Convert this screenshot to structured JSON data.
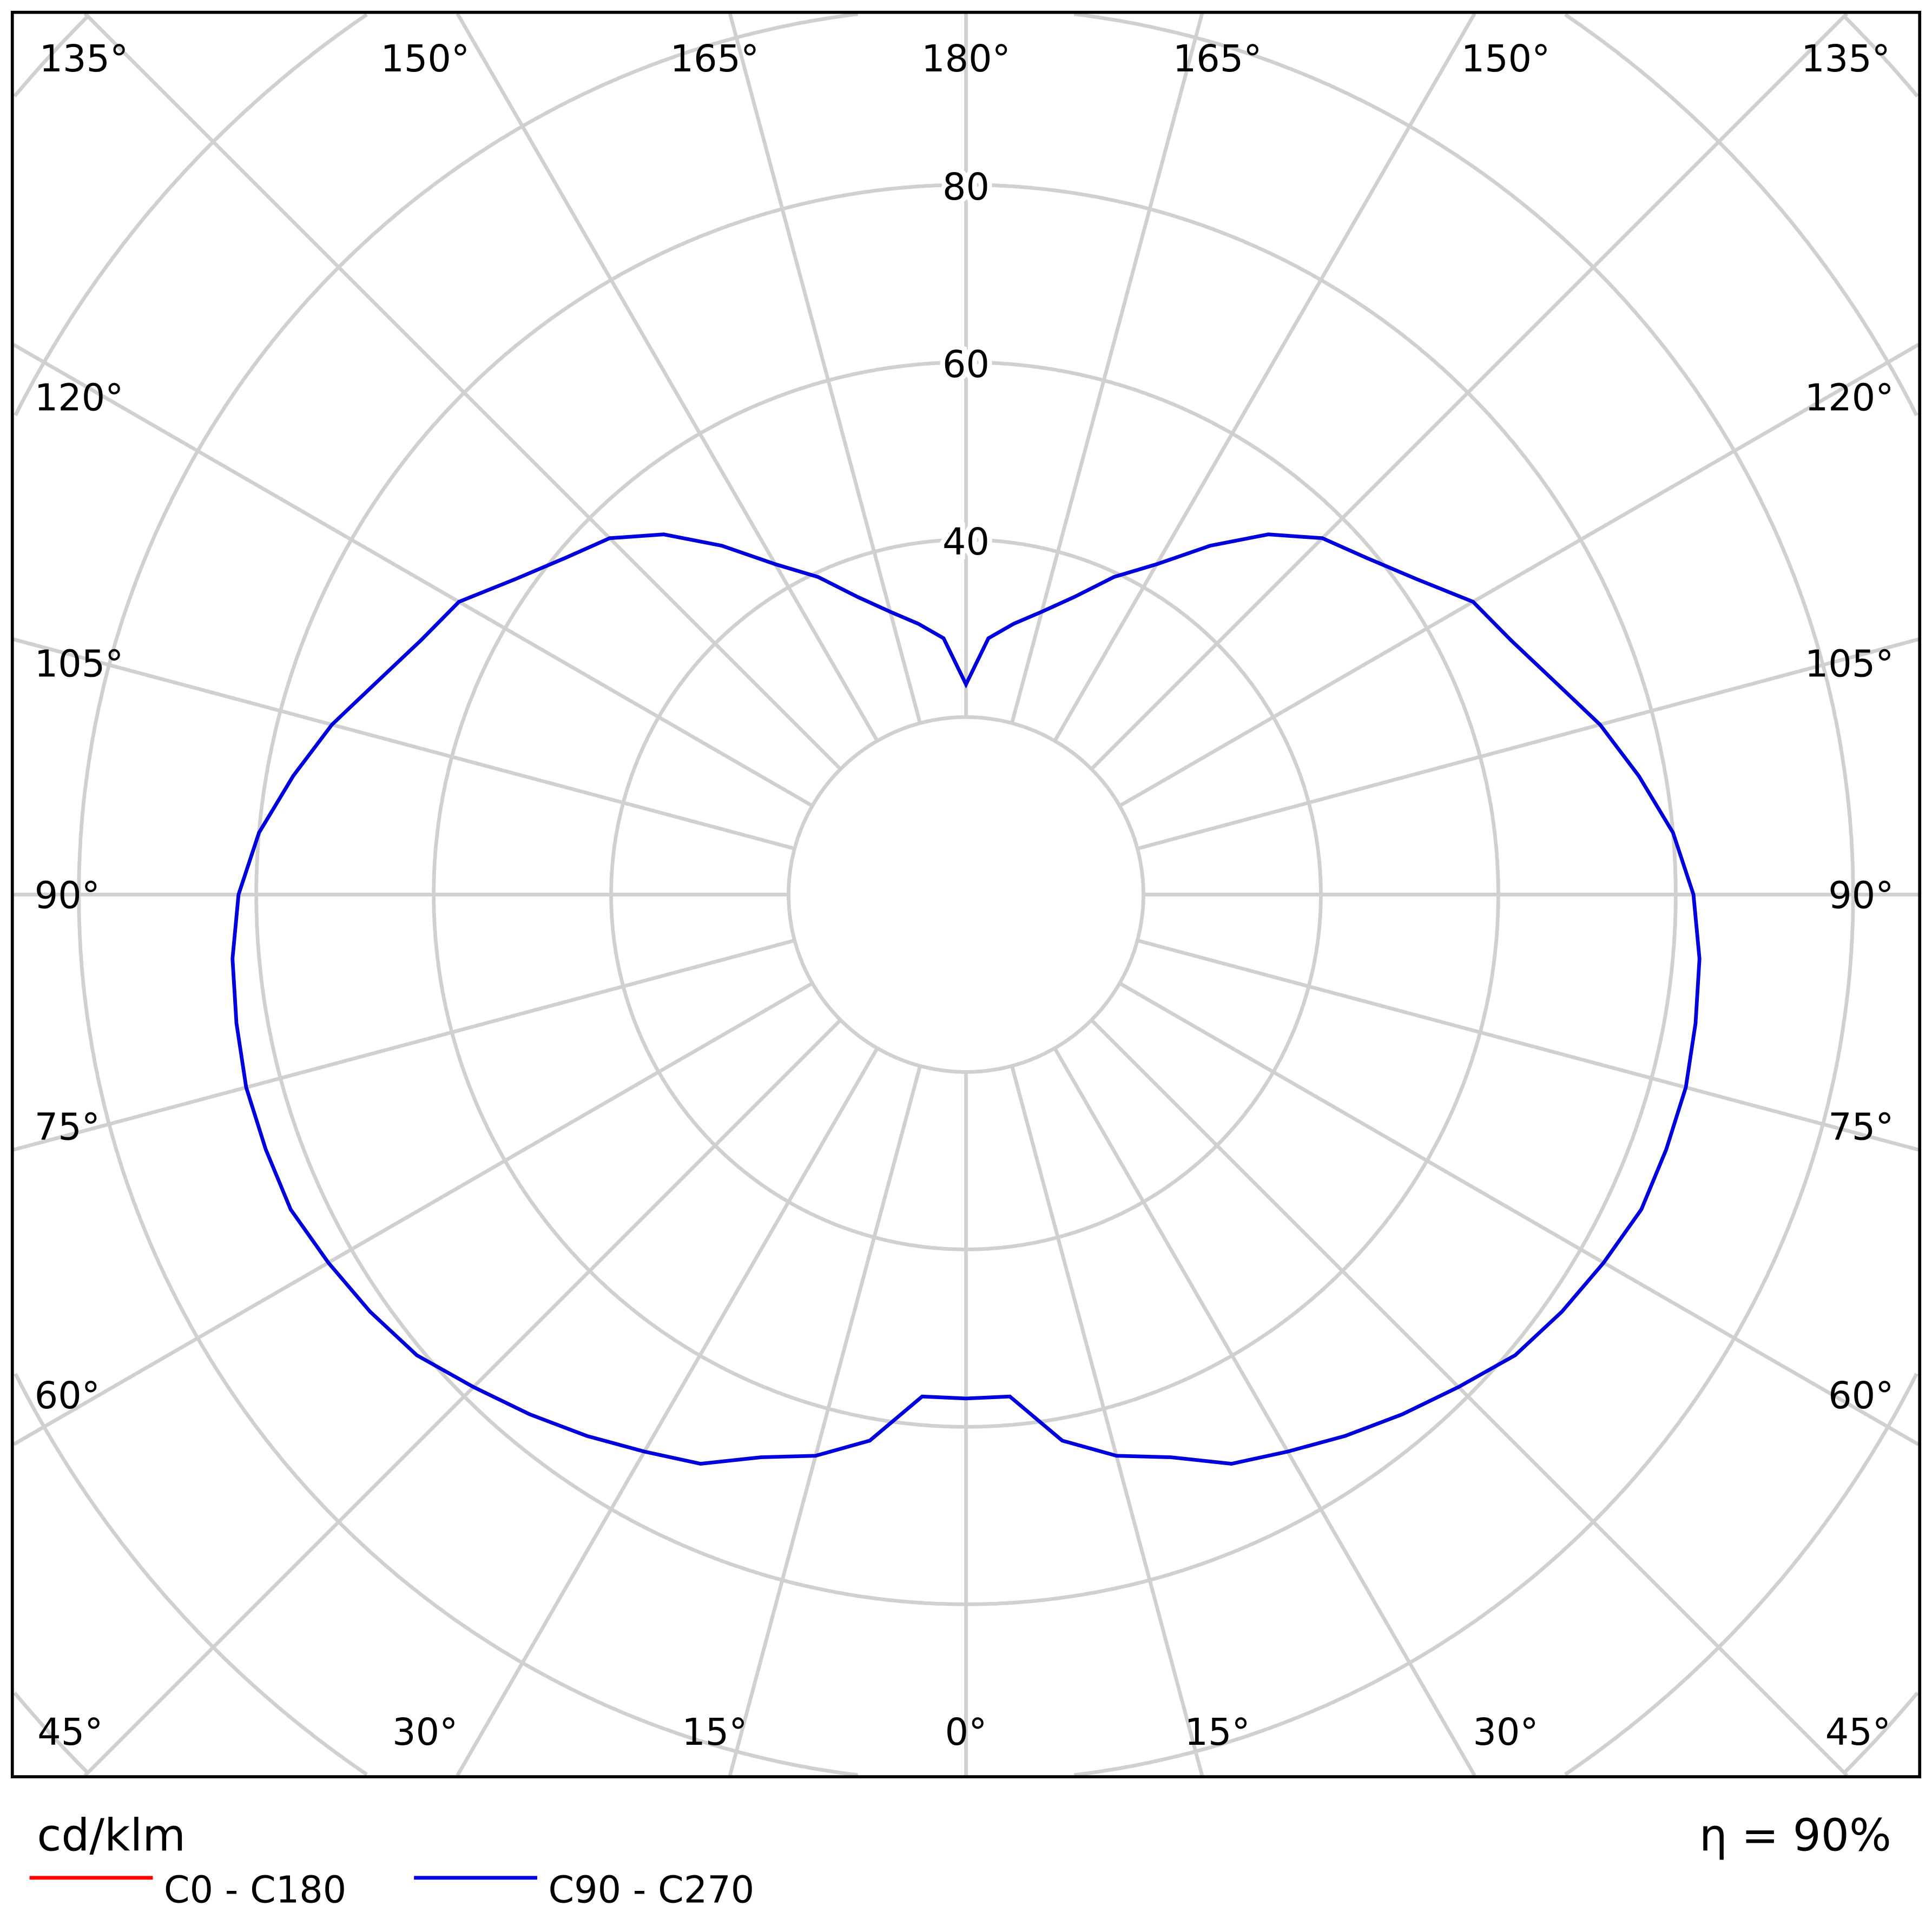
{
  "chart_data": {
    "type": "polar",
    "unit_label": "cd/klm",
    "efficiency_label": "η = 90%",
    "radial_ticks": [
      {
        "value": 40,
        "label": "40"
      },
      {
        "value": 60,
        "label": "60"
      },
      {
        "value": 80,
        "label": "80"
      }
    ],
    "rings": [
      20,
      40,
      60,
      80,
      100,
      120,
      140
    ],
    "angle_labels": {
      "top": [
        "135°",
        "150°",
        "165°",
        "180°",
        "165°",
        "150°",
        "135°"
      ],
      "left": [
        "120°",
        "105°",
        "90°",
        "75°",
        "60°"
      ],
      "right": [
        "120°",
        "105°",
        "90°",
        "75°",
        "60°"
      ],
      "bottom": [
        "45°",
        "30°",
        "15°",
        "0°",
        "15°",
        "30°",
        "45°"
      ]
    },
    "grid": true,
    "grid_color": "#d0d0d0",
    "legend": [
      {
        "name": "C0 - C180",
        "color": "#ff0000"
      },
      {
        "name": "C90 - C270",
        "color": "#0000dd"
      }
    ],
    "series": [
      {
        "name": "C90 - C270",
        "color": "#0000dd",
        "gamma": [
          0,
          5,
          10,
          15,
          20,
          25,
          30,
          35,
          40,
          45,
          50,
          55,
          60,
          65,
          70,
          75,
          80,
          85,
          90,
          95,
          100,
          105,
          110,
          115,
          120,
          125,
          130,
          135,
          140,
          145,
          150,
          155,
          160,
          165,
          170,
          175,
          180
        ],
        "values": [
          56.8,
          56.8,
          62.5,
          65.5,
          67.5,
          70.8,
          72.5,
          74.5,
          76.5,
          78.5,
          80.8,
          82,
          83,
          84,
          84,
          84,
          83.5,
          83,
          82,
          80,
          77,
          74,
          70.5,
          67.8,
          66,
          62,
          59,
          56.8,
          53,
          48,
          43,
          39.5,
          35.7,
          33,
          31,
          29,
          23.7
        ]
      }
    ]
  }
}
